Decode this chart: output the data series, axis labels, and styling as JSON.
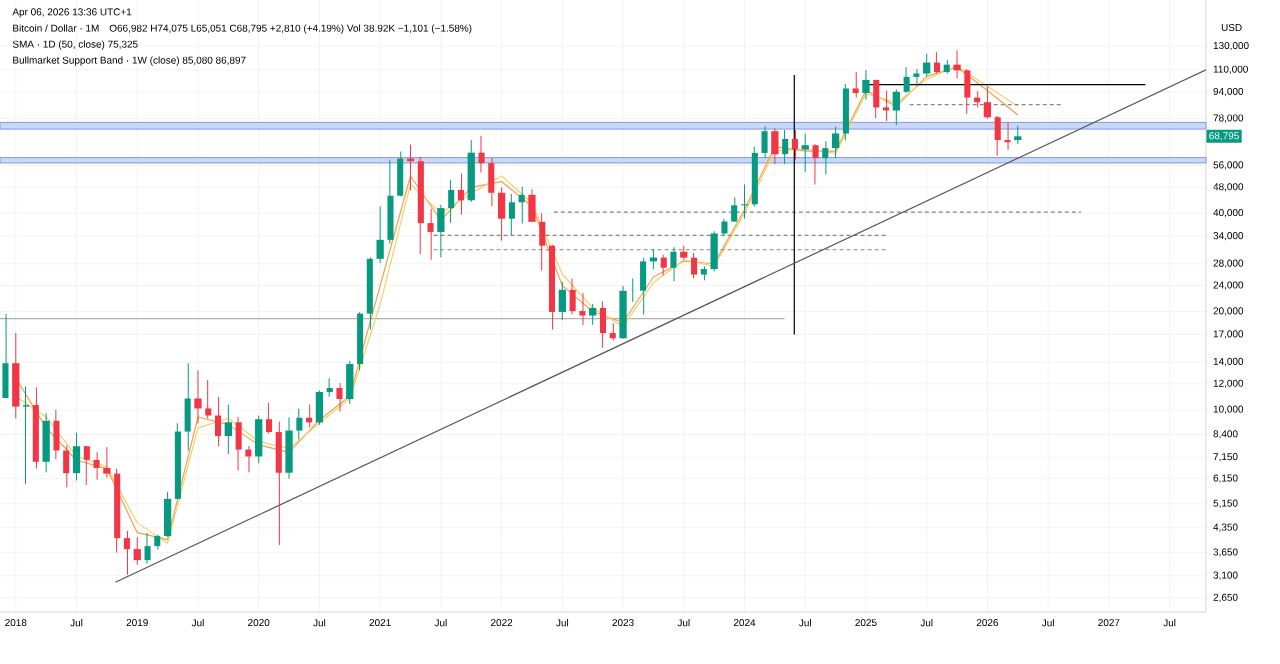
{
  "chart_data": {
    "type": "candlestick",
    "title": "Bitcoin / Dollar · 1M",
    "subtitle": "O66,982 H74,075 L65,051 C68,795 +2,810 (+4.19%) Vol 38.92K −1,101 (−1.58%)",
    "ylabel": "USD",
    "annotations": [
      "Apr 06, 2026 13:36 UTC+1",
      "SMA · 1D (50, close) 75,325",
      "Bullmarket Support Band · 1W (close) 85,080 86,897",
      {
        "text": "68,795",
        "y": 68795
      }
    ],
    "log": "y",
    "grid": true,
    "xlim": [
      "2017-11-15",
      "2027-10-18"
    ],
    "ylim": [
      2400,
      180000
    ],
    "xticks": [
      {
        "value": "2018-01",
        "label": "2018"
      },
      {
        "value": "2018-07",
        "label": "Jul"
      },
      {
        "value": "2019-01",
        "label": "2019"
      },
      {
        "value": "2019-07",
        "label": "Jul"
      },
      {
        "value": "2020-01",
        "label": "2020"
      },
      {
        "value": "2020-07",
        "label": "Jul"
      },
      {
        "value": "2021-01",
        "label": "2021"
      },
      {
        "value": "2021-07",
        "label": "Jul"
      },
      {
        "value": "2022-01",
        "label": "2022"
      },
      {
        "value": "2022-07",
        "label": "Jul"
      },
      {
        "value": "2023-01",
        "label": "2023"
      },
      {
        "value": "2023-07",
        "label": "Jul"
      },
      {
        "value": "2024-01",
        "label": "2024"
      },
      {
        "value": "2024-07",
        "label": "Jul"
      },
      {
        "value": "2025-01",
        "label": "2025"
      },
      {
        "value": "2025-07",
        "label": "Jul"
      },
      {
        "value": "2026-01",
        "label": "2026"
      },
      {
        "value": "2026-07",
        "label": "Jul"
      },
      {
        "value": "2027-01",
        "label": "2027"
      },
      {
        "value": "2027-07",
        "label": "Jul"
      }
    ],
    "yticks": [
      {
        "value": 2650,
        "label": "2,650"
      },
      {
        "value": 3100,
        "label": "3,100"
      },
      {
        "value": 3650,
        "label": "3,650"
      },
      {
        "value": 4350,
        "label": "4,350"
      },
      {
        "value": 5150,
        "label": "5,150"
      },
      {
        "value": 6150,
        "label": "6,150"
      },
      {
        "value": 7150,
        "label": "7,150"
      },
      {
        "value": 8400,
        "label": "8,400"
      },
      {
        "value": 10000,
        "label": "10,000"
      },
      {
        "value": 12000,
        "label": "12,000"
      },
      {
        "value": 14000,
        "label": "14,000"
      },
      {
        "value": 17000,
        "label": "17,000"
      },
      {
        "value": 20000,
        "label": "20,000"
      },
      {
        "value": 24000,
        "label": "24,000"
      },
      {
        "value": 28000,
        "label": "28,000"
      },
      {
        "value": 34000,
        "label": "34,000"
      },
      {
        "value": 40000,
        "label": "40,000"
      },
      {
        "value": 48000,
        "label": "48,000"
      },
      {
        "value": 56000,
        "label": "56,000"
      },
      {
        "value": 78000,
        "label": "78,000"
      },
      {
        "value": 94000,
        "label": "94,000"
      },
      {
        "value": 110000,
        "label": "110,000"
      },
      {
        "value": 130000,
        "label": "130,000"
      }
    ],
    "bands": [
      {
        "axis": "y",
        "from": 57000,
        "to": 59200,
        "color": "#7f9be6"
      },
      {
        "axis": "y",
        "from": 72400,
        "to": 75900,
        "color": "#7f9be6"
      }
    ],
    "x": [
      "2017-12",
      "2018-01",
      "2018-02",
      "2018-03",
      "2018-04",
      "2018-05",
      "2018-06",
      "2018-07",
      "2018-08",
      "2018-09",
      "2018-10",
      "2018-11",
      "2018-12",
      "2019-01",
      "2019-02",
      "2019-03",
      "2019-04",
      "2019-05",
      "2019-06",
      "2019-07",
      "2019-08",
      "2019-09",
      "2019-10",
      "2019-11",
      "2019-12",
      "2020-01",
      "2020-02",
      "2020-03",
      "2020-04",
      "2020-05",
      "2020-06",
      "2020-07",
      "2020-08",
      "2020-09",
      "2020-10",
      "2020-11",
      "2020-12",
      "2021-01",
      "2021-02",
      "2021-03",
      "2021-04",
      "2021-05",
      "2021-06",
      "2021-07",
      "2021-08",
      "2021-09",
      "2021-10",
      "2021-11",
      "2021-12",
      "2022-01",
      "2022-02",
      "2022-03",
      "2022-04",
      "2022-05",
      "2022-06",
      "2022-07",
      "2022-08",
      "2022-09",
      "2022-10",
      "2022-11",
      "2022-12",
      "2023-01",
      "2023-02",
      "2023-03",
      "2023-04",
      "2023-05",
      "2023-06",
      "2023-07",
      "2023-08",
      "2023-09",
      "2023-10",
      "2023-11",
      "2023-12",
      "2024-01",
      "2024-02",
      "2024-03",
      "2024-04",
      "2024-05",
      "2024-06",
      "2024-07",
      "2024-08",
      "2024-09",
      "2024-10",
      "2024-11",
      "2024-12",
      "2025-01",
      "2025-02",
      "2025-03",
      "2025-04",
      "2025-05",
      "2025-06",
      "2025-07",
      "2025-08",
      "2025-09",
      "2025-10",
      "2025-11",
      "2025-12",
      "2026-01",
      "2026-02",
      "2026-03",
      "2026-04"
    ],
    "ohlc": [
      [
        10860,
        19666,
        10860,
        13880
      ],
      [
        13880,
        17180,
        9400,
        10220
      ],
      [
        10220,
        11790,
        5920,
        10330
      ],
      [
        10330,
        11700,
        6600,
        6925
      ],
      [
        6925,
        9750,
        6430,
        9245
      ],
      [
        9245,
        9990,
        7050,
        7500
      ],
      [
        7500,
        7780,
        5780,
        6390
      ],
      [
        6390,
        8500,
        6070,
        7730
      ],
      [
        7730,
        7750,
        5880,
        7020
      ],
      [
        7020,
        7410,
        6100,
        6630
      ],
      [
        6630,
        7680,
        6200,
        6370
      ],
      [
        6370,
        6590,
        3650,
        4040
      ],
      [
        4040,
        4250,
        3120,
        3740
      ],
      [
        3740,
        4070,
        3350,
        3460
      ],
      [
        3460,
        4200,
        3380,
        3820
      ],
      [
        3820,
        4140,
        3730,
        4100
      ],
      [
        4100,
        5600,
        4080,
        5330
      ],
      [
        5330,
        9080,
        5330,
        8570
      ],
      [
        8570,
        13880,
        7500,
        10820
      ],
      [
        10820,
        13200,
        9070,
        10090
      ],
      [
        10090,
        12320,
        9400,
        9600
      ],
      [
        9600,
        10950,
        7730,
        8300
      ],
      [
        8300,
        10370,
        7310,
        9150
      ],
      [
        9150,
        9510,
        6510,
        7550
      ],
      [
        7550,
        7750,
        6430,
        7190
      ],
      [
        7190,
        9590,
        6850,
        9350
      ],
      [
        9350,
        10500,
        8450,
        8540
      ],
      [
        8540,
        9190,
        3850,
        6410
      ],
      [
        6410,
        9470,
        6150,
        8630
      ],
      [
        8630,
        10080,
        8110,
        9450
      ],
      [
        9450,
        10380,
        8830,
        9140
      ],
      [
        9140,
        11450,
        8990,
        11330
      ],
      [
        11330,
        12480,
        10950,
        11650
      ],
      [
        11650,
        12060,
        9880,
        10780
      ],
      [
        10780,
        14100,
        10420,
        13800
      ],
      [
        13800,
        19900,
        13200,
        19700
      ],
      [
        19700,
        29300,
        17600,
        28990
      ],
      [
        28990,
        41950,
        28130,
        33140
      ],
      [
        33140,
        58350,
        32300,
        45240
      ],
      [
        45240,
        61800,
        45000,
        58800
      ],
      [
        58800,
        64900,
        47000,
        57700
      ],
      [
        57700,
        59500,
        30000,
        37300
      ],
      [
        37300,
        41300,
        28800,
        35040
      ],
      [
        35040,
        42400,
        29300,
        41460
      ],
      [
        41460,
        50500,
        37400,
        47100
      ],
      [
        47100,
        52900,
        39600,
        43820
      ],
      [
        43820,
        67000,
        43300,
        61300
      ],
      [
        61300,
        69000,
        53300,
        56950
      ],
      [
        56950,
        59050,
        42000,
        46200
      ],
      [
        46200,
        47990,
        32950,
        38480
      ],
      [
        38480,
        45800,
        34300,
        43190
      ],
      [
        43190,
        48200,
        37200,
        45530
      ],
      [
        45530,
        47450,
        37600,
        37640
      ],
      [
        37640,
        40000,
        26700,
        31800
      ],
      [
        31800,
        31980,
        17600,
        19930
      ],
      [
        19930,
        24650,
        18800,
        23300
      ],
      [
        23300,
        25200,
        19600,
        20050
      ],
      [
        20050,
        22800,
        18150,
        19430
      ],
      [
        19430,
        21100,
        18200,
        20500
      ],
      [
        20500,
        21480,
        15480,
        17170
      ],
      [
        17170,
        18400,
        16300,
        16550
      ],
      [
        16550,
        23950,
        16500,
        23130
      ],
      [
        23130,
        25250,
        21400,
        23150
      ],
      [
        23150,
        29200,
        19570,
        28470
      ],
      [
        28470,
        31000,
        26940,
        29250
      ],
      [
        29250,
        29850,
        25810,
        27220
      ],
      [
        27220,
        31450,
        24750,
        30470
      ],
      [
        30470,
        31800,
        28860,
        29230
      ],
      [
        29230,
        30200,
        25300,
        25940
      ],
      [
        25940,
        27500,
        24900,
        26970
      ],
      [
        26970,
        35200,
        26550,
        34660
      ],
      [
        34660,
        38400,
        34100,
        37720
      ],
      [
        37720,
        44700,
        37600,
        42280
      ],
      [
        42280,
        48970,
        38500,
        42580
      ],
      [
        42580,
        63900,
        41900,
        61180
      ],
      [
        61180,
        73800,
        59000,
        71330
      ],
      [
        71330,
        72800,
        56500,
        60640
      ],
      [
        60640,
        71950,
        56600,
        67500
      ],
      [
        67500,
        71950,
        58400,
        62700
      ],
      [
        62700,
        70000,
        53500,
        64600
      ],
      [
        64600,
        65100,
        49000,
        58970
      ],
      [
        58970,
        66500,
        52600,
        63300
      ],
      [
        63300,
        73600,
        58900,
        70200
      ],
      [
        70200,
        99600,
        66800,
        96400
      ],
      [
        96400,
        108300,
        90500,
        93400
      ],
      [
        93400,
        109600,
        89200,
        102400
      ],
      [
        102400,
        102500,
        78200,
        84350
      ],
      [
        84350,
        95000,
        76600,
        82550
      ],
      [
        82550,
        95800,
        74400,
        94200
      ],
      [
        94200,
        112000,
        93400,
        104600
      ],
      [
        104600,
        110600,
        98200,
        107150
      ],
      [
        107150,
        123200,
        105100,
        115750
      ],
      [
        115750,
        124500,
        107300,
        108250
      ],
      [
        108250,
        117900,
        107200,
        114050
      ],
      [
        114050,
        126200,
        103500,
        109550
      ],
      [
        109550,
        110600,
        80600,
        90400
      ],
      [
        90400,
        94600,
        84400,
        87500
      ],
      [
        87500,
        97900,
        78000,
        78700
      ],
      [
        78700,
        79400,
        60000,
        67000
      ],
      [
        67000,
        76000,
        62500,
        65985
      ],
      [
        66982,
        74075,
        65051,
        68795
      ]
    ],
    "colors": [
      "#089981",
      "#f23645",
      "#089981",
      "#f23645",
      "#089981",
      "#f23645",
      "#f23645",
      "#089981",
      "#f23645",
      "#f23645",
      "#f23645",
      "#f23645",
      "#f23645",
      "#f23645",
      "#089981",
      "#089981",
      "#089981",
      "#089981",
      "#089981",
      "#f23645",
      "#f23645",
      "#f23645",
      "#089981",
      "#f23645",
      "#f23645",
      "#089981",
      "#f23645",
      "#f23645",
      "#089981",
      "#089981",
      "#f23645",
      "#089981",
      "#089981",
      "#f23645",
      "#089981",
      "#089981",
      "#089981",
      "#089981",
      "#089981",
      "#089981",
      "#f23645",
      "#f23645",
      "#f23645",
      "#089981",
      "#089981",
      "#f23645",
      "#089981",
      "#f23645",
      "#f23645",
      "#f23645",
      "#089981",
      "#089981",
      "#f23645",
      "#f23645",
      "#f23645",
      "#089981",
      "#f23645",
      "#f23645",
      "#089981",
      "#f23645",
      "#f23645",
      "#089981",
      "#089981",
      "#089981",
      "#089981",
      "#f23645",
      "#089981",
      "#f23645",
      "#f23645",
      "#089981",
      "#089981",
      "#089981",
      "#089981",
      "#089981",
      "#089981",
      "#089981",
      "#f23645",
      "#089981",
      "#f23645",
      "#089981",
      "#f23645",
      "#089981",
      "#089981",
      "#089981",
      "#f23645",
      "#089981",
      "#f23645",
      "#f23645",
      "#089981",
      "#089981",
      "#089981",
      "#089981",
      "#f23645",
      "#089981",
      "#f23645",
      "#f23645",
      "#f23645",
      "#f23645",
      "#f23645",
      "#f23645",
      "#089981"
    ],
    "series": [
      {
        "type": "line",
        "color": "#b0b0b0",
        "line_style": "solid",
        "x": [
          "2017-11-15",
          "2024-05-01"
        ],
        "values": [
          19000,
          19000
        ]
      },
      {
        "type": "line",
        "color": "#f0a050",
        "line_style": "solid",
        "x": [
          "2018-01",
          "2018-04",
          "2018-07",
          "2018-10",
          "2019-01",
          "2019-04",
          "2019-07",
          "2019-10",
          "2020-01",
          "2020-04",
          "2020-07",
          "2020-10",
          "2021-01",
          "2021-04",
          "2021-07",
          "2021-10",
          "2022-01",
          "2022-04",
          "2022-07",
          "2022-10",
          "2023-01",
          "2023-04",
          "2023-07",
          "2023-10",
          "2024-01",
          "2024-04",
          "2024-07",
          "2024-10",
          "2025-01",
          "2025-04",
          "2025-07",
          "2025-10",
          "2026-01",
          "2026-04"
        ],
        "values": [
          12500,
          8800,
          7000,
          6600,
          4200,
          4000,
          9500,
          9000,
          7800,
          7400,
          9300,
          11000,
          24000,
          52000,
          38000,
          48000,
          50000,
          42000,
          24000,
          20000,
          18500,
          25500,
          28500,
          28000,
          41000,
          64000,
          62000,
          62000,
          95000,
          85000,
          105000,
          112000,
          95000,
          80000
        ]
      },
      {
        "type": "line",
        "color": "#f2d16b",
        "line_style": "solid",
        "x": [
          "2018-01",
          "2018-04",
          "2018-07",
          "2018-10",
          "2019-01",
          "2019-04",
          "2019-07",
          "2019-10",
          "2020-01",
          "2020-04",
          "2020-07",
          "2020-10",
          "2021-01",
          "2021-04",
          "2021-07",
          "2021-10",
          "2022-01",
          "2022-04",
          "2022-07",
          "2022-10",
          "2023-01",
          "2023-04",
          "2023-07",
          "2023-10",
          "2024-01",
          "2024-04",
          "2024-07",
          "2024-10",
          "2025-01",
          "2025-04",
          "2025-07",
          "2025-10",
          "2026-01",
          "2026-04"
        ],
        "values": [
          11000,
          9500,
          7200,
          6700,
          4500,
          3900,
          8800,
          9400,
          8000,
          7600,
          9100,
          10800,
          21000,
          49000,
          40000,
          46000,
          52000,
          43000,
          26000,
          20500,
          18000,
          24500,
          28800,
          27500,
          40000,
          62000,
          63000,
          61000,
          93000,
          87000,
          103000,
          113000,
          98000,
          85000
        ]
      },
      {
        "type": "line",
        "color": "#888888",
        "line_style": "dashed",
        "x": [
          "2022-06-05",
          "2026-10-10"
        ],
        "values": [
          40300,
          40300
        ]
      },
      {
        "type": "line",
        "color": "#888888",
        "line_style": "dashed",
        "x": [
          "2021-06-10",
          "2025-03-05"
        ],
        "values": [
          34200,
          34200
        ]
      },
      {
        "type": "line",
        "color": "#888888",
        "line_style": "dashed",
        "x": [
          "2021-06-10",
          "2025-03-05"
        ],
        "values": [
          30900,
          30900
        ]
      },
      {
        "type": "line",
        "color": "#888888",
        "line_style": "dashed",
        "x": [
          "2025-05-10",
          "2026-08-15"
        ],
        "values": [
          86000,
          86000
        ]
      },
      {
        "type": "line",
        "color": "#000000",
        "line_style": "solid",
        "x": [
          "2025-01-10",
          "2027-04-20"
        ],
        "values": [
          99000,
          99000
        ]
      },
      {
        "type": "line",
        "color": "#000000",
        "line_style": "solid",
        "x": [
          "2024-05-30",
          "2024-05-30"
        ],
        "values": [
          106000,
          17000
        ]
      },
      {
        "type": "line",
        "color": "#555555",
        "line_style": "solid",
        "x": [
          "2018-10-25",
          "2027-10-18"
        ],
        "values": [
          2960,
          110000
        ]
      }
    ]
  }
}
